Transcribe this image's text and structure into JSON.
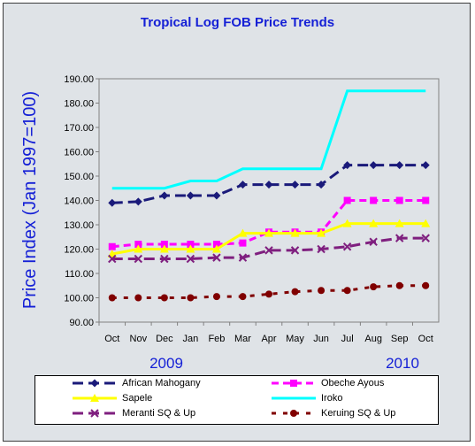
{
  "chart_data": {
    "type": "line",
    "title": "Tropical Log FOB Price Trends",
    "ylabel": "Price Index (Jan 1997=100)",
    "xlabel": "",
    "categories": [
      "Oct",
      "Nov",
      "Dec",
      "Jan",
      "Feb",
      "Mar",
      "Apr",
      "May",
      "Jun",
      "Jul",
      "Aug",
      "Sep",
      "Oct"
    ],
    "year_labels": [
      "2009",
      "2010"
    ],
    "ylim": [
      90,
      190
    ],
    "yticks": [
      "90.00",
      "100.00",
      "110.00",
      "120.00",
      "130.00",
      "140.00",
      "150.00",
      "160.00",
      "170.00",
      "180.00",
      "190.00"
    ],
    "grid": false,
    "legend_position": "bottom",
    "series": [
      {
        "name": "African Mahogany",
        "color": "#1a1a7a",
        "dash": "long",
        "marker": "diamond",
        "values": [
          139,
          139.5,
          142,
          142,
          142,
          146.5,
          146.5,
          146.5,
          146.5,
          154.5,
          154.5,
          154.5,
          154.5
        ]
      },
      {
        "name": "Obeche Ayous",
        "color": "#ff00ff",
        "dash": "medium",
        "marker": "square",
        "values": [
          121,
          122,
          122,
          122,
          122,
          122.5,
          127,
          127,
          127,
          140,
          140,
          140,
          140
        ]
      },
      {
        "name": "Sapele",
        "color": "#ffff00",
        "dash": "solid",
        "marker": "triangle",
        "values": [
          118,
          120,
          120,
          120,
          120,
          126.5,
          126.5,
          126.5,
          126.5,
          130.5,
          130.5,
          130.5,
          130.5
        ]
      },
      {
        "name": "Iroko",
        "color": "#00ffff",
        "dash": "solid",
        "marker": "none",
        "values": [
          145,
          145,
          145,
          148,
          148,
          153,
          153,
          153,
          153,
          185,
          185,
          185,
          185
        ]
      },
      {
        "name": "Meranti SQ & Up",
        "color": "#7f1f7f",
        "dash": "long",
        "marker": "x",
        "values": [
          116,
          116,
          116,
          116,
          116.5,
          116.5,
          119.5,
          119.5,
          120,
          121,
          123,
          124.5,
          124.5
        ]
      },
      {
        "name": "Keruing SQ & Up",
        "color": "#800000",
        "dash": "short",
        "marker": "circle",
        "values": [
          100,
          100,
          100,
          100,
          100.5,
          100.5,
          101.5,
          102.5,
          103,
          103,
          104.5,
          105,
          105
        ]
      }
    ]
  }
}
